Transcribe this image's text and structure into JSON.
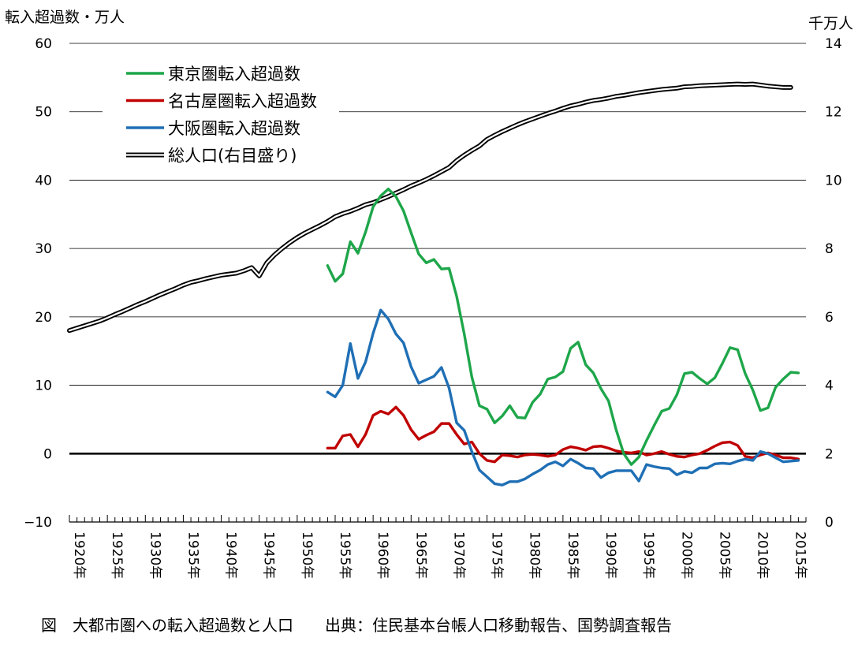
{
  "chart_data": {
    "type": "line",
    "ylabel_left": "転入超過数・万人",
    "ylabel_right": "千万人",
    "ylim_left": [
      -10,
      60
    ],
    "yticks_left": [
      "60",
      "50",
      "40",
      "30",
      "20",
      "10",
      "0",
      "−10"
    ],
    "ylim_right": [
      0,
      14
    ],
    "yticks_right": [
      "14",
      "12",
      "10",
      "8",
      "6",
      "4",
      "2",
      "0"
    ],
    "xlim": [
      1920,
      2017
    ],
    "xtick_labels": [
      "1920年",
      "1925年",
      "1930年",
      "1935年",
      "1940年",
      "1945年",
      "1950年",
      "1955年",
      "1960年",
      "1965年",
      "1970年",
      "1975年",
      "1980年",
      "1985年",
      "1990年",
      "1995年",
      "2000年",
      "2005年",
      "2010年",
      "2015年"
    ],
    "grid": "horizontal",
    "legend_position": "top-left",
    "caption": "図　大都市圏への転入超過数と人口　　出典：住民基本台帳人口移動報告、国勢調査報告",
    "colors": {
      "tokyo": "#1ea64a",
      "nagoya": "#c00000",
      "osaka": "#1f6fb5",
      "population": "#000000"
    },
    "series": [
      {
        "name": "東京圏転入超過数",
        "axis": "left",
        "color_key": "tokyo",
        "x": [
          1954,
          1955,
          1956,
          1957,
          1958,
          1959,
          1960,
          1961,
          1962,
          1963,
          1964,
          1965,
          1966,
          1967,
          1968,
          1969,
          1970,
          1971,
          1972,
          1973,
          1974,
          1975,
          1976,
          1977,
          1978,
          1979,
          1980,
          1981,
          1982,
          1983,
          1984,
          1985,
          1986,
          1987,
          1988,
          1989,
          1990,
          1991,
          1992,
          1993,
          1994,
          1995,
          1996,
          1997,
          1998,
          1999,
          2000,
          2001,
          2002,
          2003,
          2004,
          2005,
          2006,
          2007,
          2008,
          2009,
          2010,
          2011,
          2012,
          2013,
          2014,
          2015,
          2016
        ],
        "values": [
          27.5,
          25.2,
          26.3,
          31.0,
          29.3,
          32.4,
          36.1,
          37.7,
          38.7,
          37.6,
          35.5,
          32.3,
          29.2,
          27.9,
          28.4,
          27.0,
          27.1,
          23.0,
          17.5,
          11.2,
          7.0,
          6.5,
          4.5,
          5.5,
          7.0,
          5.3,
          5.2,
          7.5,
          8.7,
          10.9,
          11.2,
          12.0,
          15.4,
          16.3,
          13.0,
          11.8,
          9.5,
          7.7,
          3.5,
          0.0,
          -1.6,
          -0.5,
          1.9,
          4.1,
          6.2,
          6.6,
          8.6,
          11.7,
          11.9,
          11.0,
          10.2,
          11.1,
          13.2,
          15.5,
          15.2,
          11.7,
          9.3,
          6.3,
          6.7,
          9.7,
          10.9,
          11.9,
          11.8
        ]
      },
      {
        "name": "名古屋圏転入超過数",
        "axis": "left",
        "color_key": "nagoya",
        "x": [
          1954,
          1955,
          1956,
          1957,
          1958,
          1959,
          1960,
          1961,
          1962,
          1963,
          1964,
          1965,
          1966,
          1967,
          1968,
          1969,
          1970,
          1971,
          1972,
          1973,
          1974,
          1975,
          1976,
          1977,
          1978,
          1979,
          1980,
          1981,
          1982,
          1983,
          1984,
          1985,
          1986,
          1987,
          1988,
          1989,
          1990,
          1991,
          1992,
          1993,
          1994,
          1995,
          1996,
          1997,
          1998,
          1999,
          2000,
          2001,
          2002,
          2003,
          2004,
          2005,
          2006,
          2007,
          2008,
          2009,
          2010,
          2011,
          2012,
          2013,
          2014,
          2015,
          2016
        ],
        "values": [
          0.8,
          0.8,
          2.6,
          2.8,
          1.0,
          2.8,
          5.6,
          6.2,
          5.8,
          6.8,
          5.6,
          3.5,
          2.1,
          2.7,
          3.2,
          4.4,
          4.4,
          2.8,
          1.4,
          1.7,
          0.0,
          -1.0,
          -1.2,
          -0.2,
          -0.3,
          -0.5,
          -0.2,
          -0.1,
          -0.2,
          -0.4,
          -0.2,
          0.6,
          1.0,
          0.8,
          0.5,
          1.0,
          1.1,
          0.8,
          0.4,
          0.2,
          0.1,
          0.3,
          -0.2,
          0.0,
          0.3,
          -0.1,
          -0.4,
          -0.5,
          -0.2,
          0.0,
          0.5,
          1.1,
          1.6,
          1.7,
          1.2,
          -0.4,
          -0.6,
          -0.2,
          0.1,
          -0.2,
          -0.6,
          -0.6,
          -0.8
        ]
      },
      {
        "name": "大阪圏転入超過数",
        "axis": "left",
        "color_key": "osaka",
        "x": [
          1954,
          1955,
          1956,
          1957,
          1958,
          1959,
          1960,
          1961,
          1962,
          1963,
          1964,
          1965,
          1966,
          1967,
          1968,
          1969,
          1970,
          1971,
          1972,
          1973,
          1974,
          1975,
          1976,
          1977,
          1978,
          1979,
          1980,
          1981,
          1982,
          1983,
          1984,
          1985,
          1986,
          1987,
          1988,
          1989,
          1990,
          1991,
          1992,
          1993,
          1994,
          1995,
          1996,
          1997,
          1998,
          1999,
          2000,
          2001,
          2002,
          2003,
          2004,
          2005,
          2006,
          2007,
          2008,
          2009,
          2010,
          2011,
          2012,
          2013,
          2014,
          2015,
          2016
        ],
        "values": [
          9.0,
          8.3,
          10.0,
          16.1,
          11.0,
          13.4,
          17.6,
          21.0,
          19.7,
          17.5,
          16.2,
          12.7,
          10.3,
          10.8,
          11.3,
          12.6,
          9.6,
          4.5,
          3.4,
          0.3,
          -2.4,
          -3.4,
          -4.4,
          -4.6,
          -4.1,
          -4.1,
          -3.7,
          -3.0,
          -2.4,
          -1.6,
          -1.2,
          -1.8,
          -0.8,
          -1.4,
          -2.1,
          -2.2,
          -3.5,
          -2.8,
          -2.5,
          -2.5,
          -2.5,
          -4.0,
          -1.6,
          -1.9,
          -2.1,
          -2.2,
          -3.1,
          -2.6,
          -2.8,
          -2.1,
          -2.1,
          -1.5,
          -1.4,
          -1.5,
          -1.1,
          -0.8,
          -1.0,
          0.3,
          0.0,
          -0.6,
          -1.2,
          -1.1,
          -1.0
        ]
      },
      {
        "name": "総人口(右目盛り)",
        "axis": "right",
        "color_key": "population",
        "x": [
          1920,
          1921,
          1922,
          1923,
          1924,
          1925,
          1926,
          1927,
          1928,
          1929,
          1930,
          1931,
          1932,
          1933,
          1934,
          1935,
          1936,
          1937,
          1938,
          1939,
          1940,
          1941,
          1942,
          1943,
          1944,
          1945,
          1946,
          1947,
          1948,
          1949,
          1950,
          1951,
          1952,
          1953,
          1954,
          1955,
          1956,
          1957,
          1958,
          1959,
          1960,
          1961,
          1962,
          1963,
          1964,
          1965,
          1966,
          1967,
          1968,
          1969,
          1970,
          1971,
          1972,
          1973,
          1974,
          1975,
          1976,
          1977,
          1978,
          1979,
          1980,
          1981,
          1982,
          1983,
          1984,
          1985,
          1986,
          1987,
          1988,
          1989,
          1990,
          1991,
          1992,
          1993,
          1994,
          1995,
          1996,
          1997,
          1998,
          1999,
          2000,
          2001,
          2002,
          2003,
          2004,
          2005,
          2006,
          2007,
          2008,
          2009,
          2010,
          2011,
          2012,
          2013,
          2014,
          2015
        ],
        "values": [
          5.6,
          5.67,
          5.74,
          5.81,
          5.88,
          5.97,
          6.07,
          6.16,
          6.26,
          6.36,
          6.45,
          6.55,
          6.65,
          6.74,
          6.83,
          6.93,
          7.01,
          7.06,
          7.12,
          7.17,
          7.22,
          7.25,
          7.28,
          7.35,
          7.44,
          7.2,
          7.58,
          7.81,
          8.0,
          8.17,
          8.32,
          8.45,
          8.56,
          8.67,
          8.79,
          8.93,
          9.02,
          9.09,
          9.18,
          9.28,
          9.34,
          9.43,
          9.52,
          9.62,
          9.72,
          9.83,
          9.92,
          10.02,
          10.13,
          10.25,
          10.37,
          10.57,
          10.73,
          10.87,
          11.0,
          11.19,
          11.31,
          11.42,
          11.52,
          11.62,
          11.71,
          11.79,
          11.87,
          11.95,
          12.02,
          12.1,
          12.17,
          12.22,
          12.28,
          12.33,
          12.36,
          12.4,
          12.45,
          12.48,
          12.52,
          12.56,
          12.59,
          12.62,
          12.65,
          12.67,
          12.69,
          12.73,
          12.74,
          12.76,
          12.77,
          12.78,
          12.79,
          12.8,
          12.81,
          12.8,
          12.81,
          12.78,
          12.75,
          12.73,
          12.71,
          12.71
        ]
      }
    ]
  }
}
